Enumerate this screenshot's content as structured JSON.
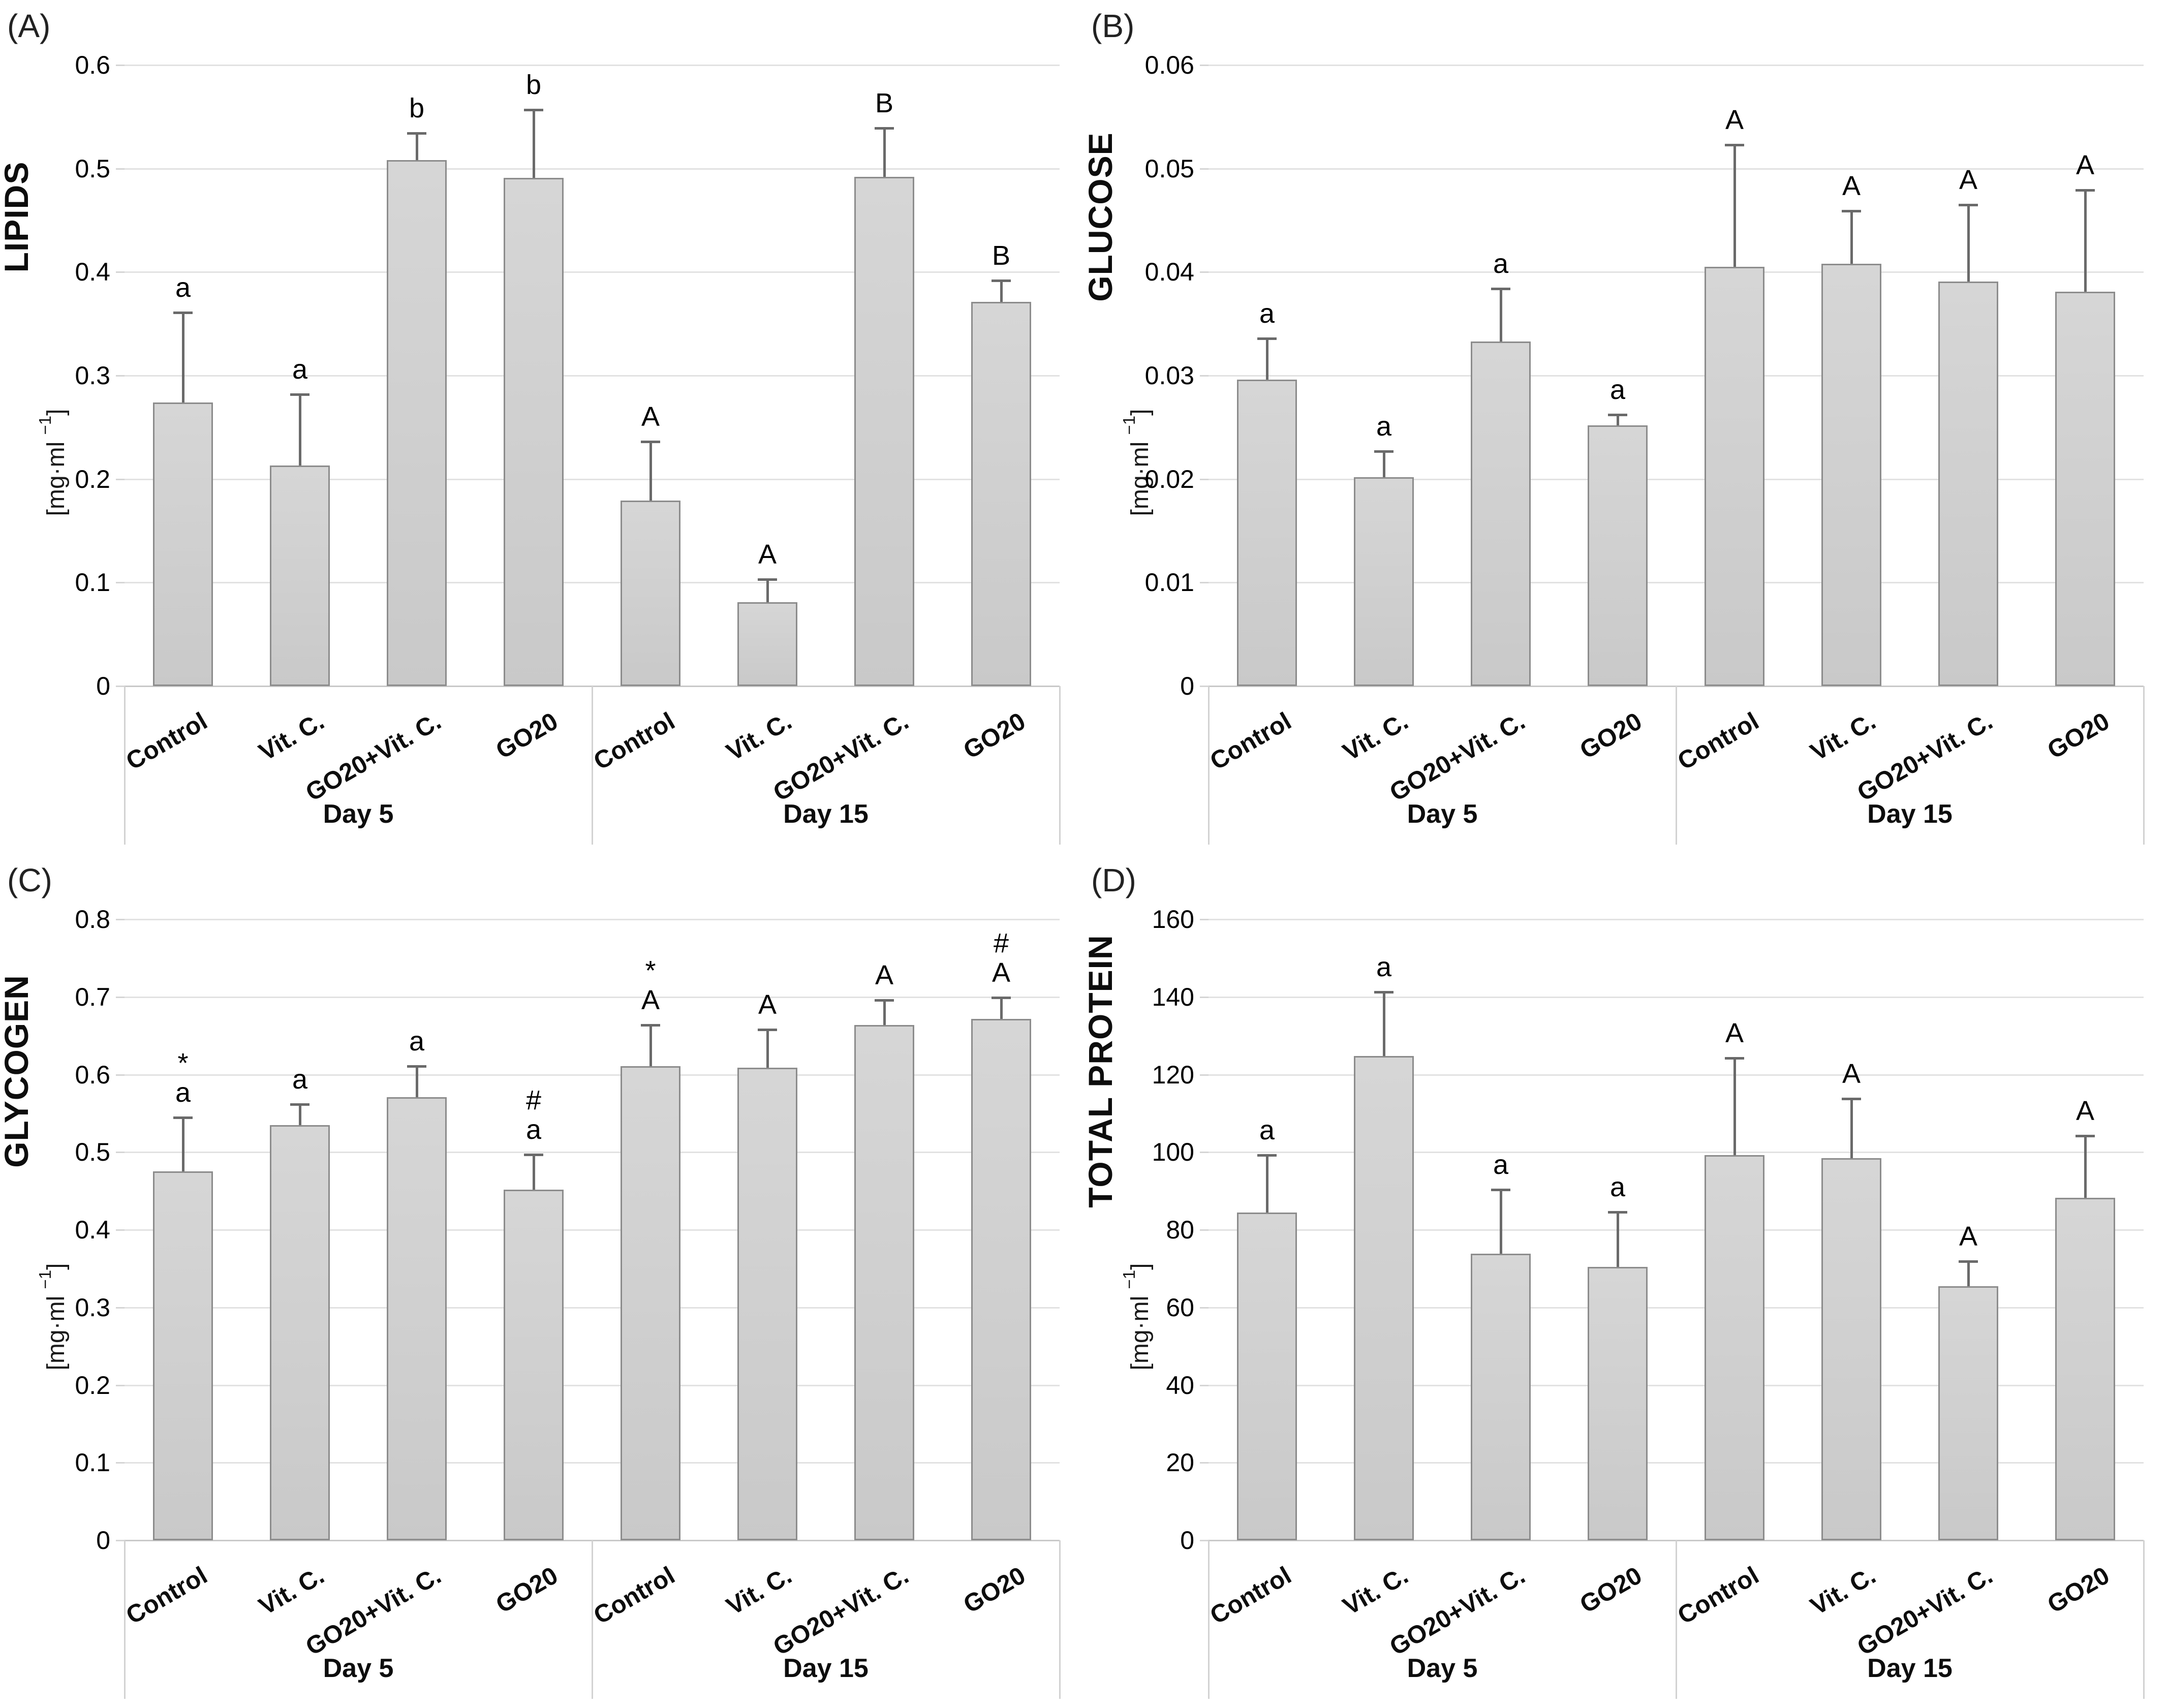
{
  "figure": {
    "panel_letters": [
      "(A)",
      "(B)",
      "(C)",
      "(D)"
    ],
    "group_labels": [
      "Day 5",
      "Day 15"
    ],
    "categories": [
      "Control",
      "Vit. C.",
      "GO20+Vit. C.",
      "GO20"
    ],
    "colors": {
      "bar_fill": "#cfcfcf",
      "bar_border": "#8c8c8c",
      "gridline": "#e2e2e2",
      "error_bar": "#6a6a6a",
      "text": "#000000",
      "background": "#ffffff"
    }
  },
  "chart_data": [
    {
      "type": "bar",
      "panel": "A",
      "letter": "(A)",
      "title": "LIPIDS",
      "unit": {
        "pre": "[mg·ml ",
        "sup": "−1",
        "post": "]"
      },
      "ylabel": "[mg·ml −1]",
      "ylim": [
        0,
        0.6
      ],
      "yticks": [
        "0.6",
        "0.5",
        "0.4",
        "0.3",
        "0.2",
        "0.1",
        "0"
      ],
      "grid": true,
      "groups": [
        {
          "label": "Day 5",
          "categories": [
            "Control",
            "Vit. C.",
            "GO20+Vit. C.",
            "GO20"
          ],
          "values": [
            0.274,
            0.213,
            0.508,
            0.491
          ],
          "err_top": [
            0.361,
            0.282,
            0.534,
            0.557
          ],
          "sig": [
            [
              "a"
            ],
            [
              "a"
            ],
            [
              "b"
            ],
            [
              "b"
            ]
          ]
        },
        {
          "label": "Day 15",
          "categories": [
            "Control",
            "Vit. C.",
            "GO20+Vit. C.",
            "GO20"
          ],
          "values": [
            0.179,
            0.081,
            0.492,
            0.371
          ],
          "err_top": [
            0.236,
            0.103,
            0.539,
            0.392
          ],
          "sig": [
            [
              "A"
            ],
            [
              "A"
            ],
            [
              "B"
            ],
            [
              "B"
            ]
          ]
        }
      ]
    },
    {
      "type": "bar",
      "panel": "B",
      "letter": "(B)",
      "title": "GLUCOSE",
      "unit": {
        "pre": "[mg·ml ",
        "sup": "−1",
        "post": "]"
      },
      "ylabel": "[mg·ml −1]",
      "ylim": [
        0,
        0.06
      ],
      "yticks": [
        "0.06",
        "0.05",
        "0.04",
        "0.03",
        "0.02",
        "0.01",
        "0"
      ],
      "grid": true,
      "groups": [
        {
          "label": "Day 5",
          "categories": [
            "Control",
            "Vit. C.",
            "GO20+Vit. C.",
            "GO20"
          ],
          "values": [
            0.0296,
            0.0202,
            0.0333,
            0.0252
          ],
          "err_top": [
            0.0336,
            0.0227,
            0.0384,
            0.0262
          ],
          "sig": [
            [
              "a"
            ],
            [
              "a"
            ],
            [
              "a"
            ],
            [
              "a"
            ]
          ]
        },
        {
          "label": "Day 15",
          "categories": [
            "Control",
            "Vit. C.",
            "GO20+Vit. C.",
            "GO20"
          ],
          "values": [
            0.0405,
            0.0408,
            0.0391,
            0.0381
          ],
          "err_top": [
            0.0523,
            0.0459,
            0.0465,
            0.0479
          ],
          "sig": [
            [
              "A"
            ],
            [
              "A"
            ],
            [
              "A"
            ],
            [
              "A"
            ]
          ]
        }
      ]
    },
    {
      "type": "bar",
      "panel": "C",
      "letter": "(C)",
      "title": "GLYCOGEN",
      "unit": {
        "pre": "[mg·ml ",
        "sup": "−1",
        "post": "]"
      },
      "ylabel": "[mg·ml −1]",
      "ylim": [
        0,
        0.8
      ],
      "yticks": [
        "0.8",
        "0.7",
        "0.6",
        "0.5",
        "0.4",
        "0.3",
        "0.2",
        "0.1",
        "0"
      ],
      "grid": true,
      "groups": [
        {
          "label": "Day 5",
          "categories": [
            "Control",
            "Vit. C.",
            "GO20+Vit. C.",
            "GO20"
          ],
          "values": [
            0.475,
            0.535,
            0.571,
            0.452
          ],
          "err_top": [
            0.545,
            0.562,
            0.611,
            0.497
          ],
          "sig": [
            [
              "*",
              "a"
            ],
            [
              "a"
            ],
            [
              "a"
            ],
            [
              "#",
              "a"
            ]
          ]
        },
        {
          "label": "Day 15",
          "categories": [
            "Control",
            "Vit. C.",
            "GO20+Vit. C.",
            "GO20"
          ],
          "values": [
            0.611,
            0.609,
            0.664,
            0.672
          ],
          "err_top": [
            0.664,
            0.658,
            0.696,
            0.699
          ],
          "sig": [
            [
              "*",
              "A"
            ],
            [
              "A"
            ],
            [
              "A"
            ],
            [
              "#",
              "A"
            ]
          ]
        }
      ]
    },
    {
      "type": "bar",
      "panel": "D",
      "letter": "(D)",
      "title": "TOTAL PROTEIN",
      "unit": {
        "pre": "[mg·ml ",
        "sup": "−1",
        "post": "]"
      },
      "ylabel": "[mg·ml −1]",
      "ylim": [
        0,
        160
      ],
      "yticks": [
        "160",
        "140",
        "120",
        "100",
        "80",
        "60",
        "40",
        "20",
        "0"
      ],
      "grid": true,
      "groups": [
        {
          "label": "Day 5",
          "categories": [
            "Control",
            "Vit. C.",
            "GO20+Vit. C.",
            "GO20"
          ],
          "values": [
            84.5,
            124.8,
            73.8,
            70.5
          ],
          "err_top": [
            99.2,
            141.3,
            90.4,
            84.6
          ],
          "sig": [
            [
              "a"
            ],
            [
              "a"
            ],
            [
              "a"
            ],
            [
              "a"
            ]
          ]
        },
        {
          "label": "Day 15",
          "categories": [
            "Control",
            "Vit. C.",
            "GO20+Vit. C.",
            "GO20"
          ],
          "values": [
            99.3,
            98.4,
            65.5,
            88.2
          ],
          "err_top": [
            124.3,
            113.8,
            71.9,
            104.2
          ],
          "sig": [
            [
              "A"
            ],
            [
              "A"
            ],
            [
              "A"
            ],
            [
              "A"
            ]
          ]
        }
      ]
    }
  ]
}
